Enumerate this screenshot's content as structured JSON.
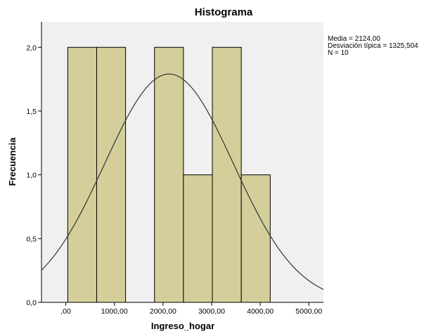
{
  "chart_data": {
    "type": "bar",
    "title": "Histograma",
    "xlabel": "Ingreso_hogar",
    "ylabel": "Frecuencia",
    "bins": [
      {
        "start": 40,
        "end": 635,
        "count": 2
      },
      {
        "start": 635,
        "end": 1230,
        "count": 2
      },
      {
        "start": 1825,
        "end": 2420,
        "count": 2
      },
      {
        "start": 2420,
        "end": 3015,
        "count": 1
      },
      {
        "start": 3015,
        "end": 3610,
        "count": 2
      },
      {
        "start": 3610,
        "end": 4205,
        "count": 1
      }
    ],
    "xlim": [
      -500,
      5300
    ],
    "ylim": [
      0,
      2.2
    ],
    "x_ticks": [
      {
        "value": 0,
        "label": ",00"
      },
      {
        "value": 1000,
        "label": "1000,00"
      },
      {
        "value": 2000,
        "label": "2000,00"
      },
      {
        "value": 3000,
        "label": "3000,00"
      },
      {
        "value": 4000,
        "label": "4000,00"
      },
      {
        "value": 5000,
        "label": "5000,00"
      }
    ],
    "y_ticks": [
      {
        "value": 0,
        "label": "0,0"
      },
      {
        "value": 0.5,
        "label": "0,5"
      },
      {
        "value": 1,
        "label": "1,0"
      },
      {
        "value": 1.5,
        "label": "1,5"
      },
      {
        "value": 2,
        "label": "2,0"
      }
    ],
    "normal_curve": {
      "mean": 2124,
      "sd": 1325.504,
      "n": 10,
      "bin_width": 595
    },
    "stats": [
      "Media = 2124,00",
      "Desviación típica = 1325,504",
      "N = 10"
    ],
    "colors": {
      "bar_fill": "#d4cf9a",
      "bar_stroke": "#000000",
      "plot_bg": "#f0f0f0",
      "curve": "#333333"
    },
    "grid": false
  }
}
